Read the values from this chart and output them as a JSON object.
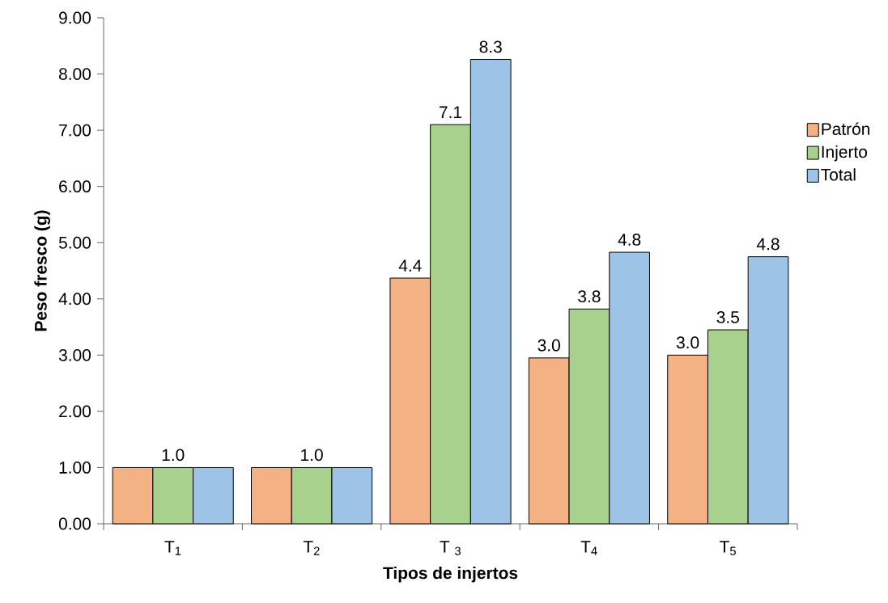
{
  "chart_data": {
    "type": "bar",
    "xlabel": "Tipos de injertos",
    "ylabel": "Peso fresco (g)",
    "categories": [
      "T$_{1}$",
      "T$_{2}$",
      "T $_{3}$",
      "T$_{4}$",
      "T$_{5}$"
    ],
    "series": [
      {
        "name": "Patrón",
        "color": "#f4b183",
        "values": [
          1.0,
          1.0,
          4.37,
          2.95,
          3.0
        ],
        "value_labels": [
          null,
          null,
          "4.4",
          "3.0",
          "3.0"
        ]
      },
      {
        "name": "Injerto",
        "color": "#a9d18e",
        "values": [
          1.0,
          1.0,
          7.1,
          3.82,
          3.45
        ],
        "value_labels": [
          "1.0",
          "1.0",
          "7.1",
          "3.8",
          "3.5"
        ]
      },
      {
        "name": "Total",
        "color": "#9dc3e6",
        "values": [
          1.0,
          1.0,
          8.26,
          4.83,
          4.75
        ],
        "value_labels": [
          null,
          null,
          "8.3",
          "4.8",
          "4.8"
        ]
      }
    ],
    "ylim": [
      0,
      9
    ],
    "yticks": [
      {
        "value": 0,
        "label": "0.00"
      },
      {
        "value": 1,
        "label": "1.00"
      },
      {
        "value": 2,
        "label": "2.00"
      },
      {
        "value": 3,
        "label": "3.00"
      },
      {
        "value": 4,
        "label": "4.00"
      },
      {
        "value": 5,
        "label": "5.00"
      },
      {
        "value": 6,
        "label": "6.00"
      },
      {
        "value": 7,
        "label": "7.00"
      },
      {
        "value": 8,
        "label": "8.00"
      },
      {
        "value": 9,
        "label": "9.00"
      }
    ],
    "legend": "right",
    "grid": false
  }
}
